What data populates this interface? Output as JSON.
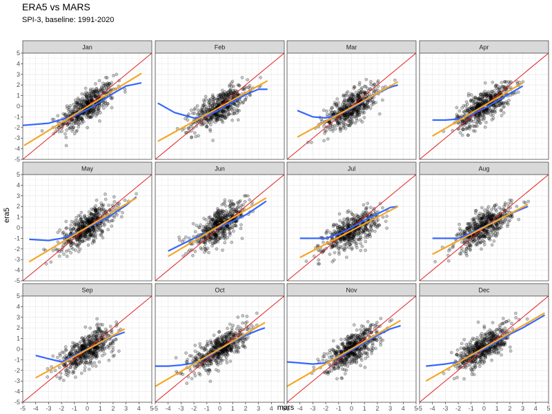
{
  "header": {
    "title": "ERA5 vs MARS",
    "subtitle": "SPI-3, baseline: 1991-2020"
  },
  "chart_data": {
    "type": "scatter",
    "layout": "facet-grid",
    "title": "ERA5 vs MARS",
    "subtitle": "SPI-3, baseline: 1991-2020",
    "xlabel": "mars",
    "ylabel": "era5",
    "xlim": [
      -5,
      5
    ],
    "ylim": [
      -5,
      5
    ],
    "x_ticks": [
      -5,
      -4,
      -3,
      -2,
      -1,
      0,
      1,
      2,
      3,
      4,
      5
    ],
    "y_ticks": [
      -5,
      -4,
      -3,
      -2,
      -1,
      0,
      1,
      2,
      3,
      4,
      5
    ],
    "tick_labels": [
      "-5",
      "-4",
      "-3",
      "-2",
      "-1",
      "0",
      "1",
      "2",
      "3",
      "4",
      "5"
    ],
    "grid": true,
    "legend": "none",
    "colors": {
      "points": "#000000",
      "identity_line": "#e31a1c",
      "smooth_curve": "#3366ff",
      "linear_fit": "#f5a623",
      "strip_fill": "#d9d9d9",
      "grid": "#ebebeb"
    },
    "reference_line": {
      "slope": 1,
      "intercept": 0
    },
    "panels": [
      {
        "name": "Jan",
        "points_range": [
          [
            -3.5,
            4.1
          ],
          [
            -3.7,
            3.0
          ]
        ],
        "linear_fit": {
          "x": [
            -4.9,
            4.2
          ],
          "y": [
            -3.7,
            3.1
          ]
        },
        "smooth_curve": {
          "x": [
            -5,
            -3,
            -1,
            0,
            1,
            2,
            3,
            4.2
          ],
          "y": [
            -1.8,
            -1.6,
            -0.9,
            -0.3,
            0.4,
            1.2,
            1.9,
            2.2
          ]
        }
      },
      {
        "name": "Feb",
        "points_range": [
          [
            -4.5,
            3.9
          ],
          [
            -3.6,
            2.7
          ]
        ],
        "linear_fit": {
          "x": [
            -4.8,
            3.7
          ],
          "y": [
            -3.3,
            2.4
          ]
        },
        "smooth_curve": {
          "x": [
            -4.8,
            -3.5,
            -2,
            -1,
            0,
            1,
            2,
            3,
            3.7
          ],
          "y": [
            0.3,
            -0.6,
            -1.1,
            -0.9,
            -0.3,
            0.4,
            1.1,
            1.6,
            1.6
          ]
        }
      },
      {
        "name": "Mar",
        "points_range": [
          [
            -4.2,
            3.9
          ],
          [
            -3.4,
            2.8
          ]
        ],
        "linear_fit": {
          "x": [
            -4.2,
            3.6
          ],
          "y": [
            -2.9,
            2.3
          ]
        },
        "smooth_curve": {
          "x": [
            -4.2,
            -3,
            -2,
            -1,
            0,
            1,
            2,
            3,
            3.6
          ],
          "y": [
            -0.4,
            -1.0,
            -1.1,
            -0.8,
            -0.2,
            0.5,
            1.2,
            1.8,
            2.0
          ]
        }
      },
      {
        "name": "Apr",
        "points_range": [
          [
            -4.1,
            3.2
          ],
          [
            -4.3,
            2.3
          ]
        ],
        "linear_fit": {
          "x": [
            -4.0,
            3.0
          ],
          "y": [
            -2.8,
            2.2
          ]
        },
        "smooth_curve": {
          "x": [
            -4.0,
            -3,
            -2,
            -1,
            0,
            1,
            2,
            3.0
          ],
          "y": [
            -1.3,
            -1.3,
            -1.2,
            -0.8,
            -0.2,
            0.5,
            1.2,
            1.9
          ]
        }
      },
      {
        "name": "May",
        "points_range": [
          [
            -4.5,
            3.8
          ],
          [
            -3.4,
            3.2
          ]
        ],
        "linear_fit": {
          "x": [
            -4.5,
            3.8
          ],
          "y": [
            -3.2,
            2.8
          ]
        },
        "smooth_curve": {
          "x": [
            -4.5,
            -3,
            -2,
            -1,
            0,
            1,
            2,
            3,
            3.8
          ],
          "y": [
            -1.1,
            -1.2,
            -1.0,
            -0.6,
            0.0,
            0.6,
            1.3,
            2.1,
            2.9
          ]
        }
      },
      {
        "name": "Jun",
        "points_range": [
          [
            -4.0,
            3.6
          ],
          [
            -3.6,
            3.0
          ]
        ],
        "linear_fit": {
          "x": [
            -4.0,
            3.6
          ],
          "y": [
            -2.7,
            2.8
          ]
        },
        "smooth_curve": {
          "x": [
            -4.0,
            -3,
            -2,
            -1,
            0,
            1,
            2,
            3,
            3.6
          ],
          "y": [
            -2.2,
            -1.6,
            -1.0,
            -0.5,
            0.1,
            0.6,
            1.2,
            2.0,
            2.5
          ]
        }
      },
      {
        "name": "Jul",
        "points_range": [
          [
            -4.0,
            3.5
          ],
          [
            -3.4,
            3.0
          ]
        ],
        "linear_fit": {
          "x": [
            -4.0,
            3.6
          ],
          "y": [
            -2.8,
            2.0
          ]
        },
        "smooth_curve": {
          "x": [
            -4.0,
            -3,
            -2,
            -1,
            0,
            1,
            2,
            3,
            3.6
          ],
          "y": [
            -1.0,
            -1.0,
            -1.0,
            -0.6,
            0.0,
            0.7,
            1.3,
            1.9,
            2.0
          ]
        }
      },
      {
        "name": "Aug",
        "points_range": [
          [
            -4.0,
            3.8
          ],
          [
            -3.2,
            2.6
          ]
        ],
        "linear_fit": {
          "x": [
            -4.0,
            3.4
          ],
          "y": [
            -2.5,
            2.2
          ]
        },
        "smooth_curve": {
          "x": [
            -4.0,
            -3,
            -2,
            -1,
            0,
            1,
            2,
            3.4
          ],
          "y": [
            -1.0,
            -1.0,
            -1.0,
            -0.5,
            0.1,
            0.7,
            1.3,
            2.0
          ]
        }
      },
      {
        "name": "Sep",
        "points_range": [
          [
            -4.0,
            3.0
          ],
          [
            -3.3,
            3.0
          ]
        ],
        "linear_fit": {
          "x": [
            -4.0,
            2.9
          ],
          "y": [
            -2.7,
            1.9
          ]
        },
        "smooth_curve": {
          "x": [
            -4.0,
            -3,
            -2,
            -1,
            0,
            1,
            2,
            2.9
          ],
          "y": [
            -0.6,
            -0.9,
            -1.2,
            -0.6,
            0.0,
            0.6,
            1.2,
            1.6
          ]
        }
      },
      {
        "name": "Oct",
        "points_range": [
          [
            -5.0,
            3.7
          ],
          [
            -3.5,
            3.4
          ]
        ],
        "linear_fit": {
          "x": [
            -5.0,
            3.5
          ],
          "y": [
            -3.5,
            2.5
          ]
        },
        "smooth_curve": {
          "x": [
            -5.0,
            -4,
            -3,
            -2,
            -1,
            0,
            1,
            2,
            3,
            3.5
          ],
          "y": [
            -1.6,
            -1.6,
            -1.5,
            -1.3,
            -0.8,
            0.0,
            0.7,
            1.3,
            1.8,
            2.0
          ]
        }
      },
      {
        "name": "Nov",
        "points_range": [
          [
            -5.0,
            3.7
          ],
          [
            -3.0,
            3.0
          ]
        ],
        "linear_fit": {
          "x": [
            -5.0,
            3.8
          ],
          "y": [
            -3.5,
            2.7
          ]
        },
        "smooth_curve": {
          "x": [
            -5.0,
            -4,
            -3,
            -2,
            -1,
            0,
            1,
            2,
            3,
            3.8
          ],
          "y": [
            -1.2,
            -1.3,
            -1.4,
            -1.3,
            -0.8,
            -0.1,
            0.6,
            1.3,
            1.9,
            2.2
          ]
        }
      },
      {
        "name": "Dec",
        "points_range": [
          [
            -5.0,
            3.7
          ],
          [
            -3.3,
            3.4
          ]
        ],
        "linear_fit": {
          "x": [
            -4.5,
            4.7
          ],
          "y": [
            -3.0,
            3.4
          ]
        },
        "smooth_curve": {
          "x": [
            -4.5,
            -3,
            -2,
            -1,
            0,
            1,
            2,
            3,
            4.7
          ],
          "y": [
            -1.6,
            -1.4,
            -1.2,
            -0.6,
            0.0,
            0.7,
            1.4,
            2.0,
            3.2
          ]
        }
      }
    ]
  }
}
